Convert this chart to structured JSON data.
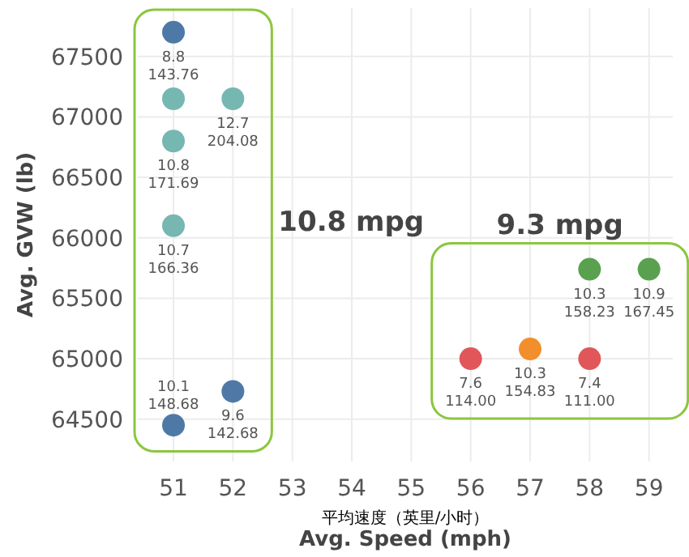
{
  "chart_data": {
    "type": "scatter",
    "xlabel": "Avg. Speed (mph)",
    "ylabel": "Avg. GVW (lb)",
    "annotations": [
      "平均速度（英里/小时）",
      "10.8 mpg",
      "9.3 mpg"
    ],
    "xlim": [
      50.4,
      59.4
    ],
    "ylim": [
      64150,
      67900
    ],
    "xticks": [
      51,
      52,
      53,
      54,
      55,
      56,
      57,
      58,
      59
    ],
    "yticks": [
      64500,
      65000,
      65500,
      66000,
      66500,
      67000,
      67500
    ],
    "grid": true,
    "marker": "circle",
    "series": [
      {
        "x": [
          51,
          51,
          52,
          51,
          51,
          52,
          51
        ],
        "values": [
          67700,
          67150,
          67150,
          66800,
          66100,
          64730,
          64450
        ],
        "colors": [
          "#4e79a7",
          "#76b7b2",
          "#76b7b2",
          "#76b7b2",
          "#76b7b2",
          "#4e79a7",
          "#4e79a7"
        ],
        "value_labels": [
          "8.8\n143.76",
          null,
          "12.7\n204.08",
          "10.8\n171.69",
          "10.7\n166.36",
          "9.6\n142.68",
          "10.1\n148.68"
        ]
      },
      {
        "x": [
          58,
          59,
          56,
          57,
          58
        ],
        "values": [
          65740,
          65740,
          65000,
          65080,
          65000
        ],
        "colors": [
          "#59a14f",
          "#59a14f",
          "#e15759",
          "#f28e2b",
          "#e15759"
        ],
        "value_labels": [
          "10.3\n158.23",
          "10.9\n167.45",
          "7.6\n114.00",
          "10.3\n154.83",
          "7.4\n111.00"
        ]
      }
    ]
  }
}
